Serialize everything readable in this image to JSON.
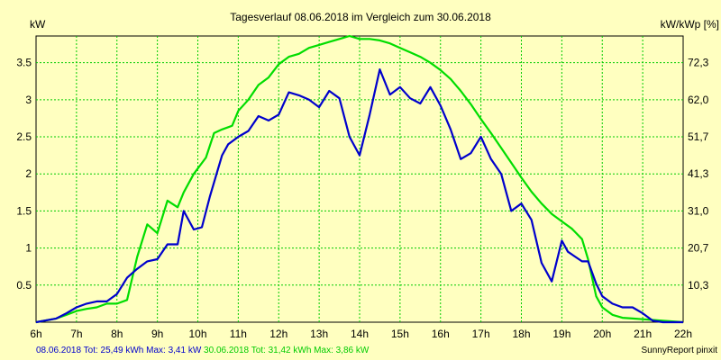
{
  "chart_data": {
    "type": "line",
    "title": "Tagesverlauf 08.06.2018 im Vergleich zum 30.06.2018",
    "ylabel_left": "kW",
    "ylabel_right": "kW/kWp [%]",
    "xlim": [
      6,
      22
    ],
    "ylim": [
      0,
      3.86
    ],
    "x_ticks": [
      "6h",
      "7h",
      "8h",
      "9h",
      "10h",
      "11h",
      "12h",
      "13h",
      "14h",
      "15h",
      "16h",
      "17h",
      "18h",
      "19h",
      "20h",
      "21h",
      "22h"
    ],
    "y_ticks_left": [
      "0.5",
      "1",
      "1.5",
      "2",
      "2.5",
      "3",
      "3.5"
    ],
    "y_ticks_right": [
      "10,3",
      "20,7",
      "31,0",
      "41,3",
      "51,7",
      "62,0",
      "72,3"
    ],
    "grid": true,
    "series": [
      {
        "name": "08.06.2018",
        "color": "#0000cc",
        "x": [
          6.0,
          6.5,
          6.75,
          7.0,
          7.25,
          7.5,
          7.75,
          8.0,
          8.25,
          8.5,
          8.75,
          9.0,
          9.25,
          9.5,
          9.65,
          9.9,
          10.1,
          10.3,
          10.6,
          10.75,
          11.0,
          11.25,
          11.5,
          11.75,
          12.0,
          12.25,
          12.5,
          12.75,
          13.0,
          13.25,
          13.5,
          13.75,
          14.0,
          14.25,
          14.5,
          14.75,
          15.0,
          15.25,
          15.5,
          15.75,
          16.0,
          16.25,
          16.5,
          16.75,
          17.0,
          17.25,
          17.5,
          17.75,
          18.0,
          18.25,
          18.5,
          18.75,
          19.0,
          19.15,
          19.5,
          19.65,
          19.85,
          20.0,
          20.25,
          20.5,
          20.75,
          21.0,
          21.25,
          21.5,
          22.0
        ],
        "y": [
          0.0,
          0.05,
          0.12,
          0.2,
          0.25,
          0.28,
          0.28,
          0.38,
          0.6,
          0.72,
          0.82,
          0.85,
          1.05,
          1.05,
          1.5,
          1.25,
          1.28,
          1.7,
          2.25,
          2.4,
          2.5,
          2.58,
          2.78,
          2.72,
          2.8,
          3.1,
          3.06,
          3.0,
          2.9,
          3.12,
          3.02,
          2.5,
          2.25,
          2.8,
          3.41,
          3.07,
          3.17,
          3.02,
          2.95,
          3.17,
          2.92,
          2.6,
          2.2,
          2.28,
          2.5,
          2.2,
          2.0,
          1.5,
          1.6,
          1.38,
          0.8,
          0.55,
          1.1,
          0.95,
          0.82,
          0.82,
          0.52,
          0.35,
          0.25,
          0.2,
          0.2,
          0.12,
          0.02,
          0.0,
          0.0
        ]
      },
      {
        "name": "30.06.2018",
        "color": "#00dd00",
        "x": [
          6.0,
          6.5,
          6.75,
          7.0,
          7.25,
          7.5,
          7.75,
          8.0,
          8.25,
          8.5,
          8.75,
          9.0,
          9.25,
          9.5,
          9.65,
          9.9,
          10.2,
          10.4,
          10.6,
          10.85,
          11.0,
          11.25,
          11.5,
          11.75,
          12.0,
          12.25,
          12.5,
          12.75,
          13.0,
          13.25,
          13.5,
          13.75,
          14.0,
          14.25,
          14.5,
          14.75,
          15.0,
          15.25,
          15.5,
          15.75,
          16.0,
          16.25,
          16.5,
          16.75,
          17.0,
          17.25,
          17.5,
          17.75,
          18.0,
          18.25,
          18.5,
          18.75,
          19.0,
          19.25,
          19.5,
          19.65,
          19.85,
          20.0,
          20.25,
          20.5,
          20.75,
          21.0,
          21.25,
          21.5,
          22.0
        ],
        "y": [
          0.0,
          0.05,
          0.1,
          0.15,
          0.18,
          0.2,
          0.25,
          0.25,
          0.3,
          0.88,
          1.32,
          1.2,
          1.64,
          1.55,
          1.75,
          2.0,
          2.22,
          2.55,
          2.6,
          2.65,
          2.85,
          3.0,
          3.2,
          3.3,
          3.48,
          3.58,
          3.62,
          3.7,
          3.74,
          3.78,
          3.82,
          3.86,
          3.82,
          3.82,
          3.8,
          3.76,
          3.7,
          3.64,
          3.58,
          3.5,
          3.4,
          3.28,
          3.12,
          2.94,
          2.74,
          2.55,
          2.35,
          2.15,
          1.95,
          1.76,
          1.6,
          1.46,
          1.36,
          1.26,
          1.12,
          0.85,
          0.35,
          0.2,
          0.1,
          0.06,
          0.05,
          0.04,
          0.03,
          0.02,
          0.0
        ]
      }
    ]
  },
  "footer": {
    "left_blue": "08.06.2018 Tot: 25,49 kWh Max: 3,41 kW",
    "left_green": "30.06.2018 Tot: 31,42 kWh Max: 3,86 kW",
    "right": "SunnyReport pinxit"
  }
}
